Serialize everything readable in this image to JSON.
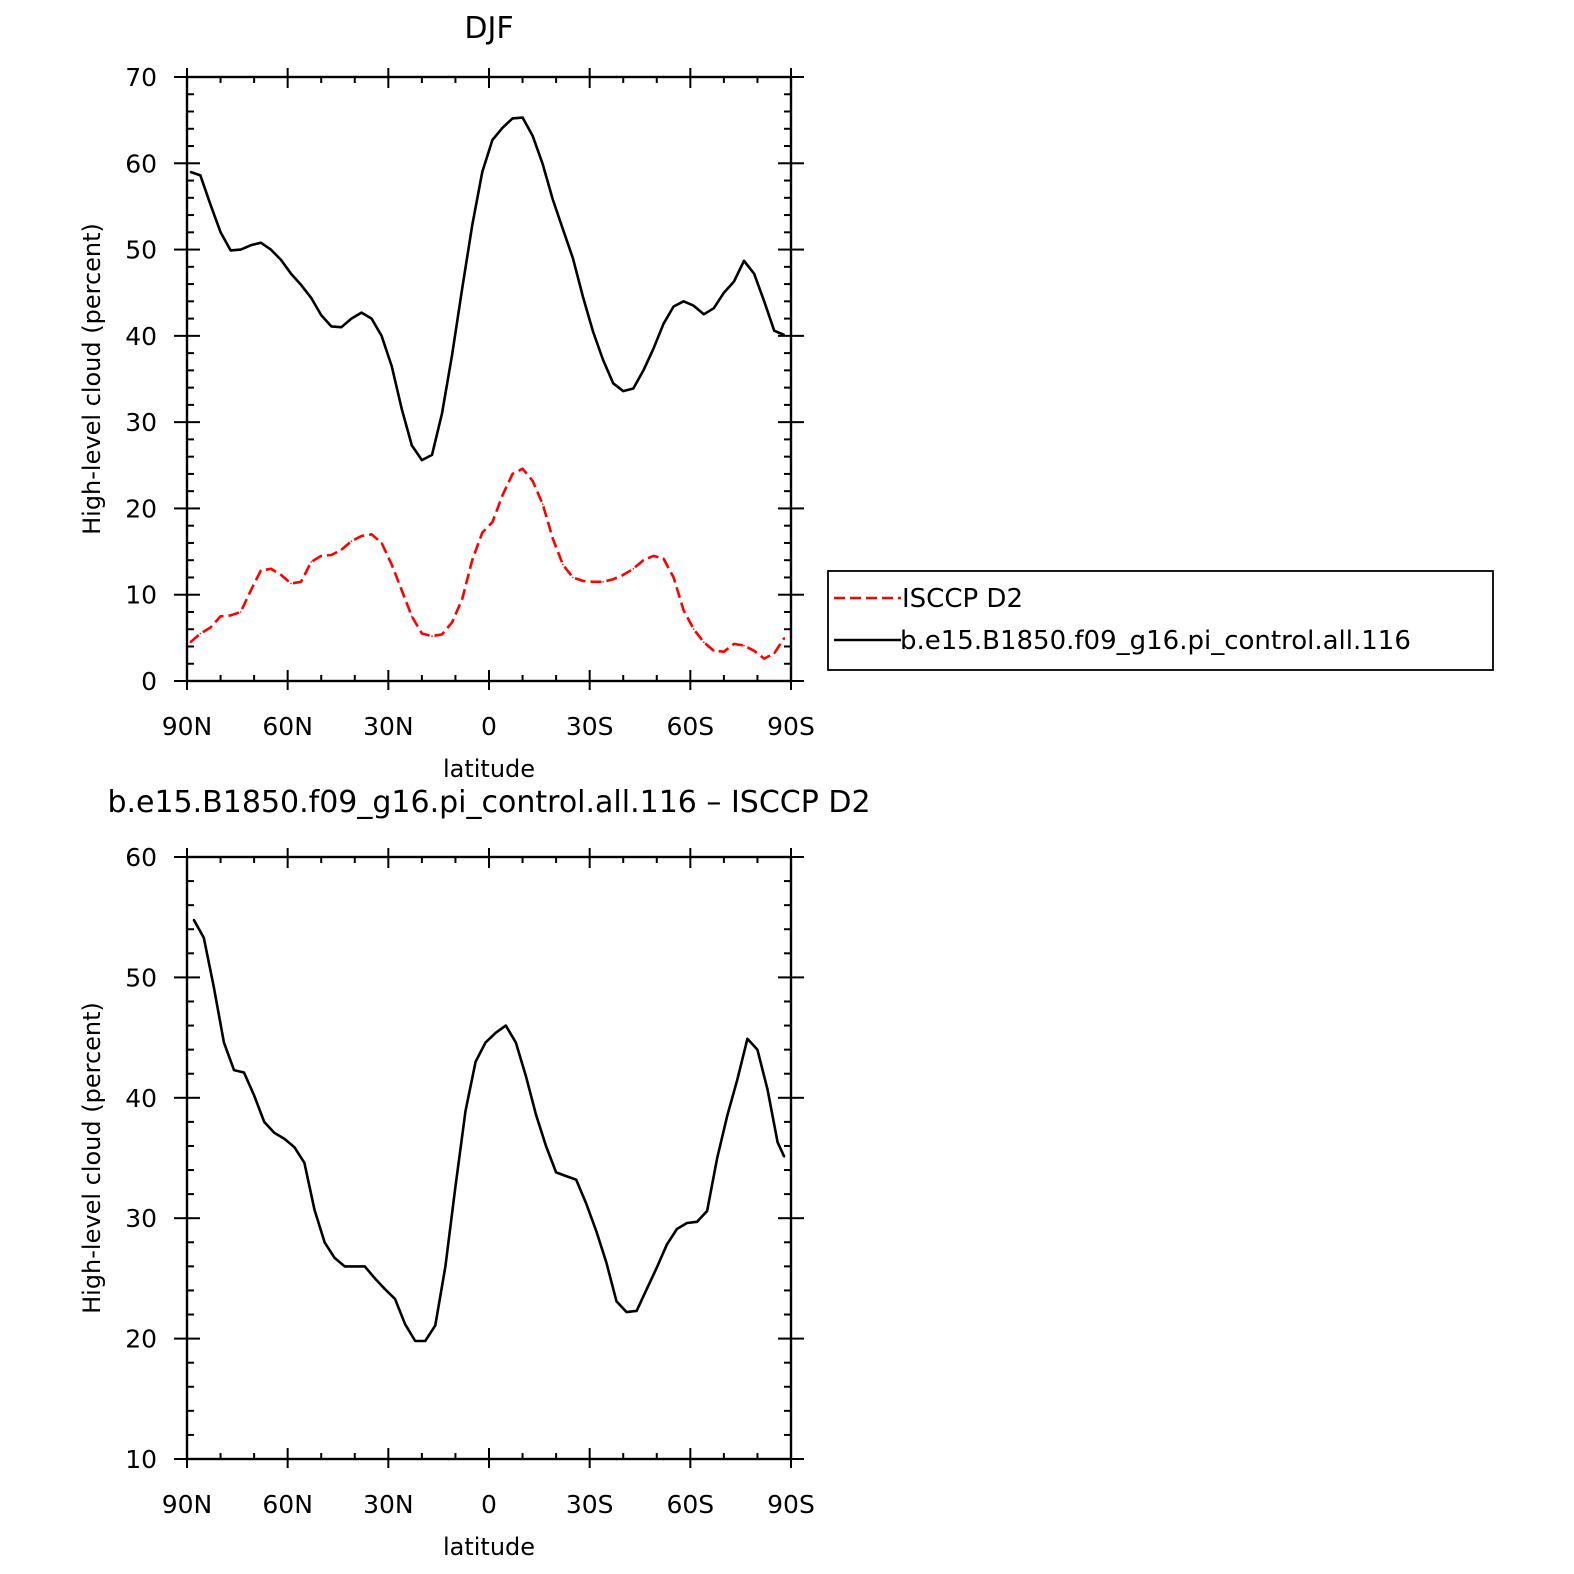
{
  "chart_data": [
    {
      "type": "line",
      "title": "DJF",
      "xlabel": "latitude",
      "ylabel": "High-level cloud (percent)",
      "xlim": [
        -90,
        90
      ],
      "ylim": [
        0,
        70
      ],
      "x_ticks": [
        -90,
        -60,
        -30,
        0,
        30,
        60,
        90
      ],
      "x_tick_labels": [
        "90N",
        "60N",
        "30N",
        "0",
        "30S",
        "60S",
        "90S"
      ],
      "y_ticks": [
        0,
        10,
        20,
        30,
        40,
        50,
        60,
        70
      ],
      "y_tick_labels": [
        "0",
        "10",
        "20",
        "30",
        "40",
        "50",
        "60",
        "70"
      ],
      "legend_position": "right",
      "series": [
        {
          "name": "ISCCP D2",
          "color": "#ff0000",
          "dash": "dashed",
          "x": [
            -89,
            -86,
            -83,
            -80,
            -77,
            -74,
            -71,
            -68,
            -65,
            -62,
            -59,
            -56,
            -53,
            -50,
            -47,
            -44,
            -41,
            -38,
            -35,
            -32,
            -29,
            -26,
            -23,
            -20,
            -17,
            -14,
            -11,
            -8,
            -5,
            -2,
            1,
            4,
            7,
            10,
            13,
            16,
            19,
            22,
            25,
            28,
            31,
            34,
            37,
            40,
            43,
            46,
            49,
            52,
            55,
            58,
            61,
            64,
            67,
            70,
            73,
            76,
            79,
            82,
            85,
            88
          ],
          "values": [
            4.5,
            5.5,
            6.2,
            7.5,
            7.6,
            8.0,
            10.5,
            12.8,
            13.0,
            12.3,
            11.3,
            11.5,
            13.8,
            14.5,
            14.6,
            15.2,
            16.2,
            16.8,
            17.0,
            16.0,
            13.5,
            10.5,
            7.5,
            5.5,
            5.2,
            5.4,
            6.8,
            9.5,
            14.0,
            17.2,
            18.4,
            21.5,
            24.0,
            24.6,
            23.2,
            20.5,
            16.5,
            13.5,
            12.0,
            11.6,
            11.5,
            11.5,
            11.8,
            12.3,
            13.0,
            14.0,
            14.5,
            14.2,
            12.0,
            8.2,
            6.0,
            4.5,
            3.5,
            3.4,
            4.3,
            4.1,
            3.5,
            2.6,
            3.2,
            5.0
          ]
        },
        {
          "name": "b.e15.B1850.f09_g16.pi_control.all.116",
          "color": "#000000",
          "dash": "solid",
          "x": [
            -89,
            -86,
            -83,
            -80,
            -77,
            -74,
            -71,
            -68,
            -65,
            -62,
            -59,
            -56,
            -53,
            -50,
            -47,
            -44,
            -41,
            -38,
            -35,
            -32,
            -29,
            -26,
            -23,
            -20,
            -17,
            -14,
            -11,
            -8,
            -5,
            -2,
            1,
            4,
            7,
            10,
            13,
            16,
            19,
            22,
            25,
            28,
            31,
            34,
            37,
            40,
            43,
            46,
            49,
            52,
            55,
            58,
            61,
            64,
            67,
            70,
            73,
            76,
            79,
            82,
            85,
            88
          ],
          "values": [
            59.0,
            58.6,
            55.2,
            52.0,
            49.9,
            50.0,
            50.5,
            50.8,
            50.0,
            48.8,
            47.2,
            45.9,
            44.4,
            42.4,
            41.1,
            41.0,
            42.0,
            42.7,
            42.0,
            40.0,
            36.5,
            31.5,
            27.3,
            25.6,
            26.2,
            31.0,
            37.8,
            45.5,
            52.8,
            59.0,
            62.7,
            64.1,
            65.2,
            65.3,
            63.2,
            59.9,
            55.8,
            52.4,
            49.0,
            44.5,
            40.5,
            37.2,
            34.5,
            33.6,
            33.9,
            36.0,
            38.5,
            41.4,
            43.4,
            44.0,
            43.5,
            42.5,
            43.2,
            45.0,
            46.3,
            48.7,
            47.2,
            44.0,
            40.6,
            40.1
          ]
        }
      ]
    },
    {
      "type": "line",
      "title": "b.e15.B1850.f09_g16.pi_control.all.116 – ISCCP D2",
      "xlabel": "latitude",
      "ylabel": "High-level cloud (percent)",
      "xlim": [
        -90,
        90
      ],
      "ylim": [
        10,
        60
      ],
      "x_ticks": [
        -90,
        -60,
        -30,
        0,
        30,
        60,
        90
      ],
      "x_tick_labels": [
        "90N",
        "60N",
        "30N",
        "0",
        "30S",
        "60S",
        "90S"
      ],
      "y_ticks": [
        10,
        20,
        30,
        40,
        50,
        60
      ],
      "y_tick_labels": [
        "10",
        "20",
        "30",
        "40",
        "50",
        "60"
      ],
      "series": [
        {
          "color": "#000000",
          "dash": "solid",
          "x": [
            -88,
            -85,
            -82,
            -79,
            -76,
            -73,
            -70,
            -67,
            -64,
            -61,
            -58,
            -55,
            -52,
            -49,
            -46,
            -43,
            -40,
            -37,
            -34,
            -31,
            -28,
            -25,
            -22,
            -19,
            -16,
            -13,
            -10,
            -7,
            -4,
            -1,
            2,
            5,
            8,
            11,
            14,
            17,
            20,
            23,
            26,
            29,
            32,
            35,
            38,
            41,
            44,
            47,
            50,
            53,
            56,
            59,
            62,
            65,
            68,
            71,
            74,
            77,
            80,
            83,
            86,
            88
          ],
          "values": [
            54.8,
            53.3,
            49.2,
            44.6,
            42.3,
            42.1,
            40.2,
            38.0,
            37.1,
            36.6,
            35.9,
            34.6,
            30.7,
            28.0,
            26.7,
            26.0,
            26.0,
            26.0,
            25.0,
            24.1,
            23.3,
            21.2,
            19.8,
            19.8,
            21.1,
            26.0,
            32.6,
            38.9,
            43.0,
            44.6,
            45.4,
            46.0,
            44.6,
            41.8,
            38.6,
            36.0,
            33.8,
            33.5,
            33.2,
            31.2,
            28.9,
            26.3,
            23.1,
            22.2,
            22.3,
            24.1,
            25.9,
            27.8,
            29.1,
            29.6,
            29.7,
            30.6,
            35.0,
            38.5,
            41.5,
            44.9,
            44.0,
            40.7,
            36.3,
            35.1
          ]
        }
      ]
    }
  ]
}
